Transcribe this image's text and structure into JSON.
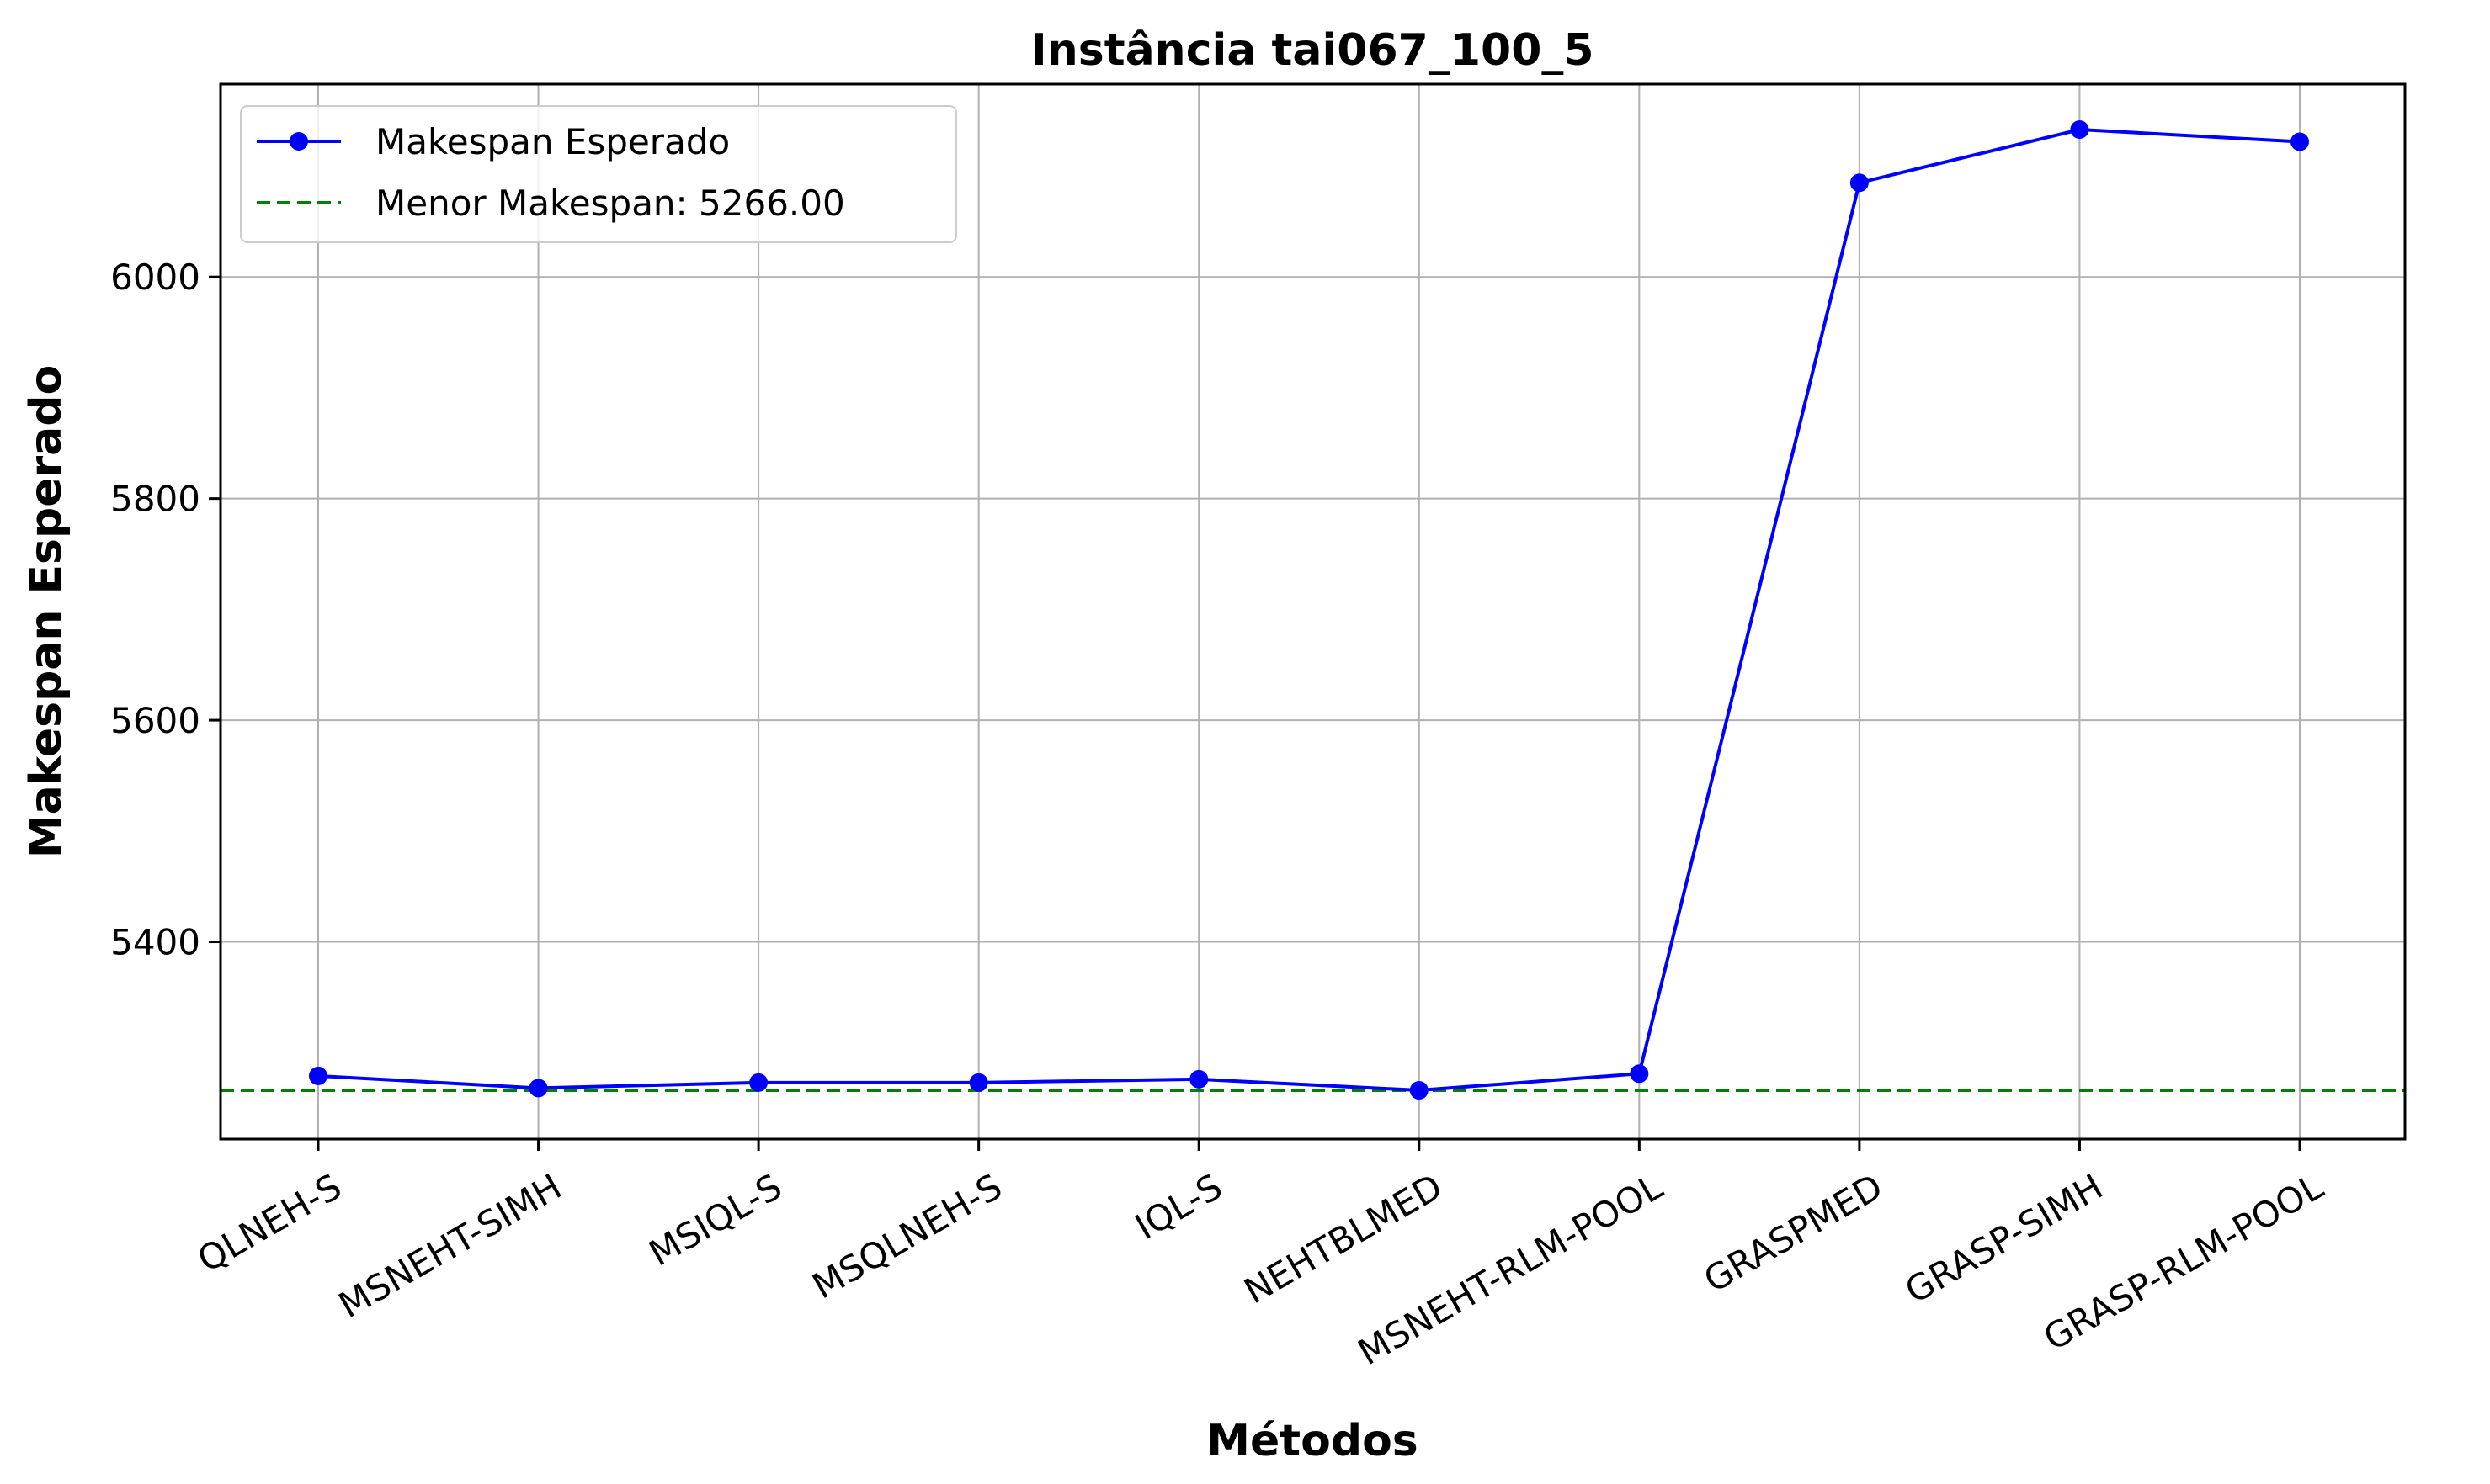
{
  "chart_data": {
    "type": "line",
    "title": "Instância tai067_100_5",
    "xlabel": "Métodos",
    "ylabel": "Makespan Esperado",
    "categories": [
      "QLNEH-S",
      "MSNEHT-SIMH",
      "MSIQL-S",
      "MSQLNEH-S",
      "IQL-S",
      "NEHTBLMED",
      "MSNEHT-RLM-POOL",
      "GRASPMED",
      "GRASP-SIMH",
      "GRASP-RLM-POOL"
    ],
    "series": [
      {
        "name": "Makespan Esperado",
        "values": [
          5279,
          5268,
          5273,
          5273,
          5276,
          5266,
          5281,
          6085,
          6133,
          6122
        ],
        "color": "#0000ff",
        "marker": "circle"
      }
    ],
    "reference_line": {
      "label": "Menor Makespan: 5266.00",
      "value": 5266,
      "color": "#008000",
      "style": "dashed"
    },
    "yticks": [
      5400,
      5600,
      5800,
      6000
    ],
    "ylim": [
      5222,
      6174
    ],
    "grid": true,
    "legend_position": "top-left"
  }
}
